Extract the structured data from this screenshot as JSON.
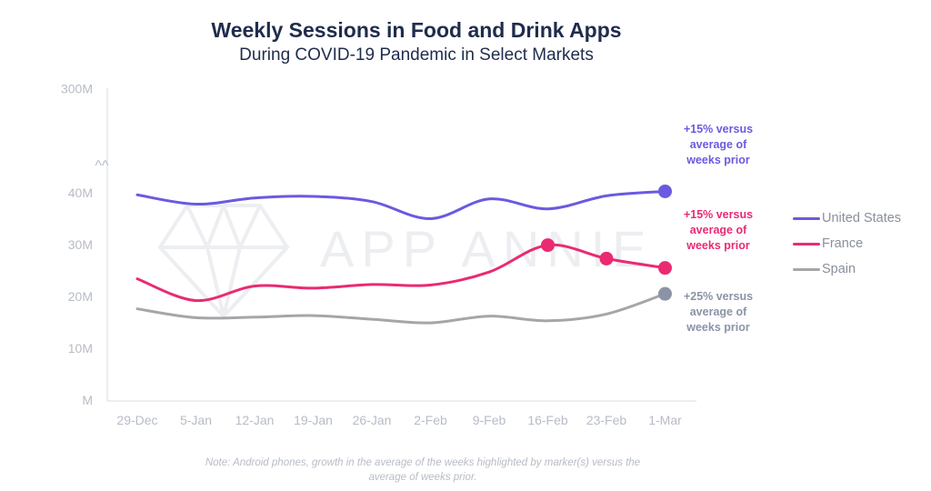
{
  "chart_data": {
    "type": "line",
    "title": "Weekly Sessions in Food and Drink Apps",
    "subtitle": "During COVID-19 Pandemic in Select Markets",
    "xlabel": "",
    "ylabel": "",
    "categories": [
      "29-Dec",
      "5-Jan",
      "12-Jan",
      "19-Jan",
      "26-Jan",
      "2-Feb",
      "9-Feb",
      "16-Feb",
      "23-Feb",
      "1-Mar"
    ],
    "y_ticks": [
      {
        "value": 0,
        "label": "M"
      },
      {
        "value": 10,
        "label": "10M"
      },
      {
        "value": 20,
        "label": "20M"
      },
      {
        "value": 30,
        "label": "30M"
      },
      {
        "value": 40,
        "label": "40M"
      },
      {
        "value": 300,
        "label": "300M"
      }
    ],
    "axis_break_symbol": "^^",
    "ylim": [
      0,
      300
    ],
    "grid": false,
    "legend_position": "right",
    "series": [
      {
        "name": "United States",
        "color": "#6a5ae0",
        "values": [
          39.6,
          37.8,
          39.0,
          39.3,
          38.3,
          35.0,
          38.8,
          36.9,
          39.4,
          43.5
        ],
        "markers": [
          9
        ]
      },
      {
        "name": "France",
        "color": "#ea2a72",
        "values": [
          23.4,
          19.2,
          22.0,
          21.6,
          22.3,
          22.2,
          24.7,
          29.9,
          27.3,
          25.5
        ],
        "markers": [
          7,
          8,
          9
        ]
      },
      {
        "name": "Spain",
        "color": "#a6a6a6",
        "marker_color": "#8b93a7",
        "values": [
          17.6,
          15.9,
          16.0,
          16.3,
          15.6,
          14.9,
          16.2,
          15.3,
          16.6,
          20.5
        ],
        "markers": [
          9
        ]
      }
    ],
    "annotations": [
      {
        "series": 0,
        "color": "#6a5ae0",
        "lines": [
          "+15% versus",
          "average of",
          "weeks prior"
        ]
      },
      {
        "series": 1,
        "color": "#ea2a72",
        "lines": [
          "+15% versus",
          "average of",
          "weeks prior"
        ]
      },
      {
        "series": 2,
        "color": "#8b93a7",
        "lines": [
          "+25% versus",
          "average of",
          "weeks prior"
        ]
      }
    ],
    "watermark": "APP ANNIE",
    "note": "Note: Android phones, growth in the average of the weeks highlighted by marker(s) versus the average of  weeks prior."
  }
}
